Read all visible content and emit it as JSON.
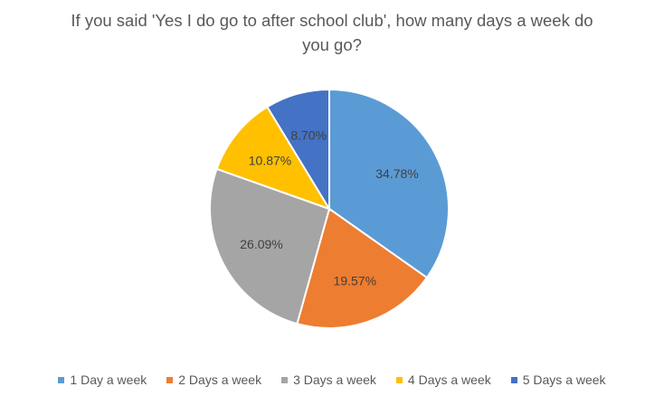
{
  "chart_data": {
    "type": "pie",
    "title": "If you said 'Yes I do go to after school club', how many days a week do you go?",
    "categories": [
      "1 Day a week",
      "2 Days a week",
      "3 Days a week",
      "4 Days a week",
      "5 Days a week"
    ],
    "values": [
      34.78,
      19.57,
      26.09,
      10.87,
      8.7
    ],
    "data_labels": [
      "34.78%",
      "19.57%",
      "26.09%",
      "10.87%",
      "8.70%"
    ],
    "colors": [
      "#5B9BD5",
      "#ED7D31",
      "#A5A5A5",
      "#FFC000",
      "#4472C4"
    ],
    "legend_position": "bottom",
    "start_angle": "12 o'clock",
    "direction": "clockwise"
  }
}
